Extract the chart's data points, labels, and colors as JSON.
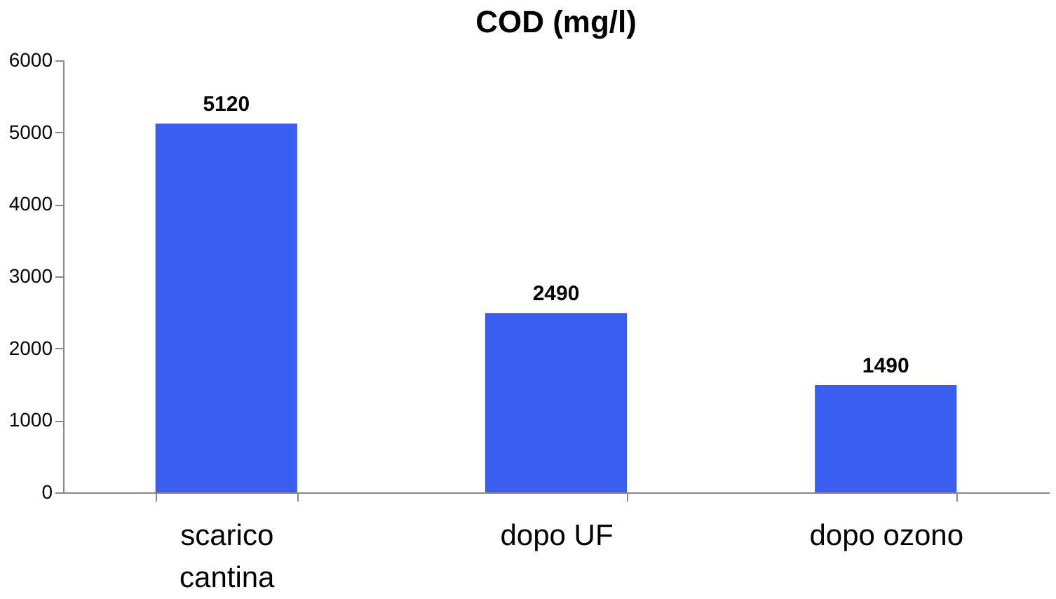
{
  "chart_data": {
    "type": "bar",
    "title": "COD (mg/l)",
    "categories": [
      "scarico cantina",
      "dopo UF",
      "dopo ozono"
    ],
    "values": [
      5120,
      2490,
      1490
    ],
    "color": "#3a5ff0",
    "ylim": [
      0,
      6000
    ],
    "yticks": [
      0,
      1000,
      2000,
      3000,
      4000,
      5000,
      6000
    ],
    "grid": false,
    "data_labels": true
  }
}
